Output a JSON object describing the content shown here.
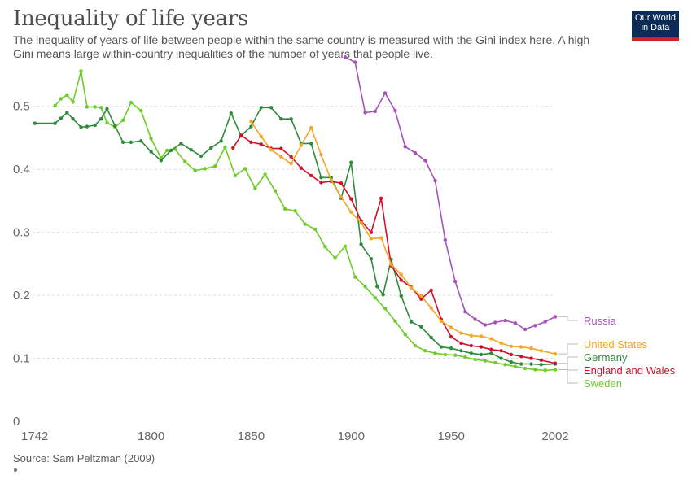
{
  "header": {
    "title": "Inequality of life years",
    "subtitle": "The inequality of years of life between people within the same country is measured with the Gini index here. A high Gini means large within-country inequalities of the number of years that people live.",
    "logo_line1": "Our World",
    "logo_line2": "in Data"
  },
  "footer": {
    "source": "Source: Sam Peltzman (2009)"
  },
  "colors": {
    "Russia": "#a652ba",
    "United States": "#f5a623",
    "Germany": "#2e8b3c",
    "England and Wales": "#d0112b",
    "Sweden": "#6bcc2a",
    "grid": "#dddddd",
    "axis_text": "#666666"
  },
  "chart_data": {
    "type": "line",
    "title": "Inequality of life years",
    "xlim": [
      1742,
      2002
    ],
    "ylim": [
      0,
      0.55
    ],
    "x_ticks": [
      1742,
      1800,
      1850,
      1900,
      1950,
      2002
    ],
    "y_ticks": [
      0,
      0.1,
      0.2,
      0.3,
      0.4,
      0.5
    ],
    "y_tick_labels": [
      "0",
      "0.1",
      "0.2",
      "0.3",
      "0.4",
      "0.5"
    ],
    "grid": "horizontal dashed",
    "legend": "right-side line labels",
    "series": [
      {
        "name": "Sweden",
        "x": [
          1752,
          1755,
          1758,
          1761,
          1765,
          1768,
          1772,
          1775,
          1778,
          1782,
          1786,
          1790,
          1795,
          1800,
          1805,
          1808,
          1812,
          1817,
          1822,
          1827,
          1832,
          1837,
          1842,
          1847,
          1852,
          1857,
          1862,
          1867,
          1872,
          1877,
          1882,
          1887,
          1892,
          1897,
          1902,
          1907,
          1912,
          1917,
          1922,
          1927,
          1932,
          1937,
          1942,
          1947,
          1952,
          1957,
          1962,
          1967,
          1972,
          1977,
          1982,
          1987,
          1992,
          1997,
          2002
        ],
        "y": [
          0.501,
          0.512,
          0.518,
          0.507,
          0.556,
          0.499,
          0.499,
          0.498,
          0.474,
          0.467,
          0.478,
          0.506,
          0.493,
          0.449,
          0.418,
          0.43,
          0.432,
          0.412,
          0.398,
          0.401,
          0.405,
          0.435,
          0.39,
          0.401,
          0.37,
          0.392,
          0.366,
          0.337,
          0.334,
          0.313,
          0.305,
          0.277,
          0.259,
          0.278,
          0.229,
          0.214,
          0.196,
          0.179,
          0.159,
          0.138,
          0.12,
          0.112,
          0.108,
          0.106,
          0.105,
          0.102,
          0.098,
          0.096,
          0.093,
          0.09,
          0.087,
          0.084,
          0.082,
          0.081,
          0.082
        ]
      },
      {
        "name": "Germany",
        "x": [
          1742,
          1752,
          1755,
          1758,
          1761,
          1765,
          1768,
          1772,
          1775,
          1778,
          1782,
          1786,
          1790,
          1795,
          1800,
          1805,
          1810,
          1815,
          1820,
          1825,
          1830,
          1835,
          1840,
          1845,
          1850,
          1855,
          1860,
          1865,
          1870,
          1875,
          1880,
          1885,
          1890,
          1895,
          1900,
          1905,
          1910,
          1913,
          1916,
          1920,
          1925,
          1930,
          1935,
          1940,
          1945,
          1950,
          1955,
          1960,
          1965,
          1970,
          1975,
          1980,
          1985,
          1990,
          1995,
          2002
        ],
        "y": [
          0.473,
          0.473,
          0.481,
          0.49,
          0.48,
          0.467,
          0.468,
          0.47,
          0.48,
          0.496,
          0.469,
          0.443,
          0.443,
          0.445,
          0.428,
          0.414,
          0.43,
          0.441,
          0.431,
          0.421,
          0.434,
          0.445,
          0.489,
          0.453,
          0.468,
          0.498,
          0.498,
          0.48,
          0.48,
          0.441,
          0.441,
          0.387,
          0.387,
          0.354,
          0.411,
          0.281,
          0.258,
          0.214,
          0.201,
          0.257,
          0.199,
          0.158,
          0.15,
          0.133,
          0.118,
          0.116,
          0.112,
          0.108,
          0.106,
          0.108,
          0.1,
          0.094,
          0.091,
          0.091,
          0.09,
          0.091
        ]
      },
      {
        "name": "England and Wales",
        "x": [
          1841,
          1845,
          1850,
          1855,
          1860,
          1865,
          1870,
          1875,
          1880,
          1885,
          1890,
          1895,
          1900,
          1905,
          1910,
          1915,
          1920,
          1925,
          1930,
          1935,
          1940,
          1945,
          1950,
          1955,
          1960,
          1965,
          1970,
          1975,
          1980,
          1985,
          1990,
          1995,
          2002
        ],
        "y": [
          0.434,
          0.454,
          0.443,
          0.44,
          0.433,
          0.433,
          0.42,
          0.402,
          0.39,
          0.379,
          0.381,
          0.378,
          0.353,
          0.318,
          0.3,
          0.354,
          0.247,
          0.224,
          0.213,
          0.194,
          0.208,
          0.162,
          0.134,
          0.124,
          0.12,
          0.118,
          0.114,
          0.112,
          0.106,
          0.103,
          0.1,
          0.097,
          0.092
        ]
      },
      {
        "name": "United States",
        "x": [
          1850,
          1855,
          1860,
          1865,
          1870,
          1875,
          1880,
          1885,
          1890,
          1895,
          1900,
          1905,
          1910,
          1915,
          1920,
          1925,
          1930,
          1935,
          1940,
          1945,
          1950,
          1955,
          1960,
          1965,
          1970,
          1975,
          1980,
          1985,
          1990,
          1995,
          2002
        ],
        "y": [
          0.476,
          0.452,
          0.431,
          0.42,
          0.409,
          0.438,
          0.466,
          0.423,
          0.383,
          0.356,
          0.332,
          0.315,
          0.29,
          0.291,
          0.249,
          0.233,
          0.212,
          0.199,
          0.18,
          0.159,
          0.149,
          0.14,
          0.136,
          0.135,
          0.131,
          0.124,
          0.119,
          0.118,
          0.116,
          0.112,
          0.107
        ]
      },
      {
        "name": "Russia",
        "x": [
          1897,
          1902,
          1907,
          1912,
          1917,
          1922,
          1927,
          1932,
          1937,
          1942,
          1947,
          1952,
          1957,
          1962,
          1967,
          1972,
          1977,
          1982,
          1987,
          1992,
          1997,
          2002
        ],
        "y": [
          0.578,
          0.57,
          0.49,
          0.492,
          0.521,
          0.493,
          0.436,
          0.426,
          0.414,
          0.382,
          0.288,
          0.222,
          0.174,
          0.162,
          0.153,
          0.157,
          0.16,
          0.156,
          0.146,
          0.152,
          0.158,
          0.166
        ]
      }
    ]
  }
}
